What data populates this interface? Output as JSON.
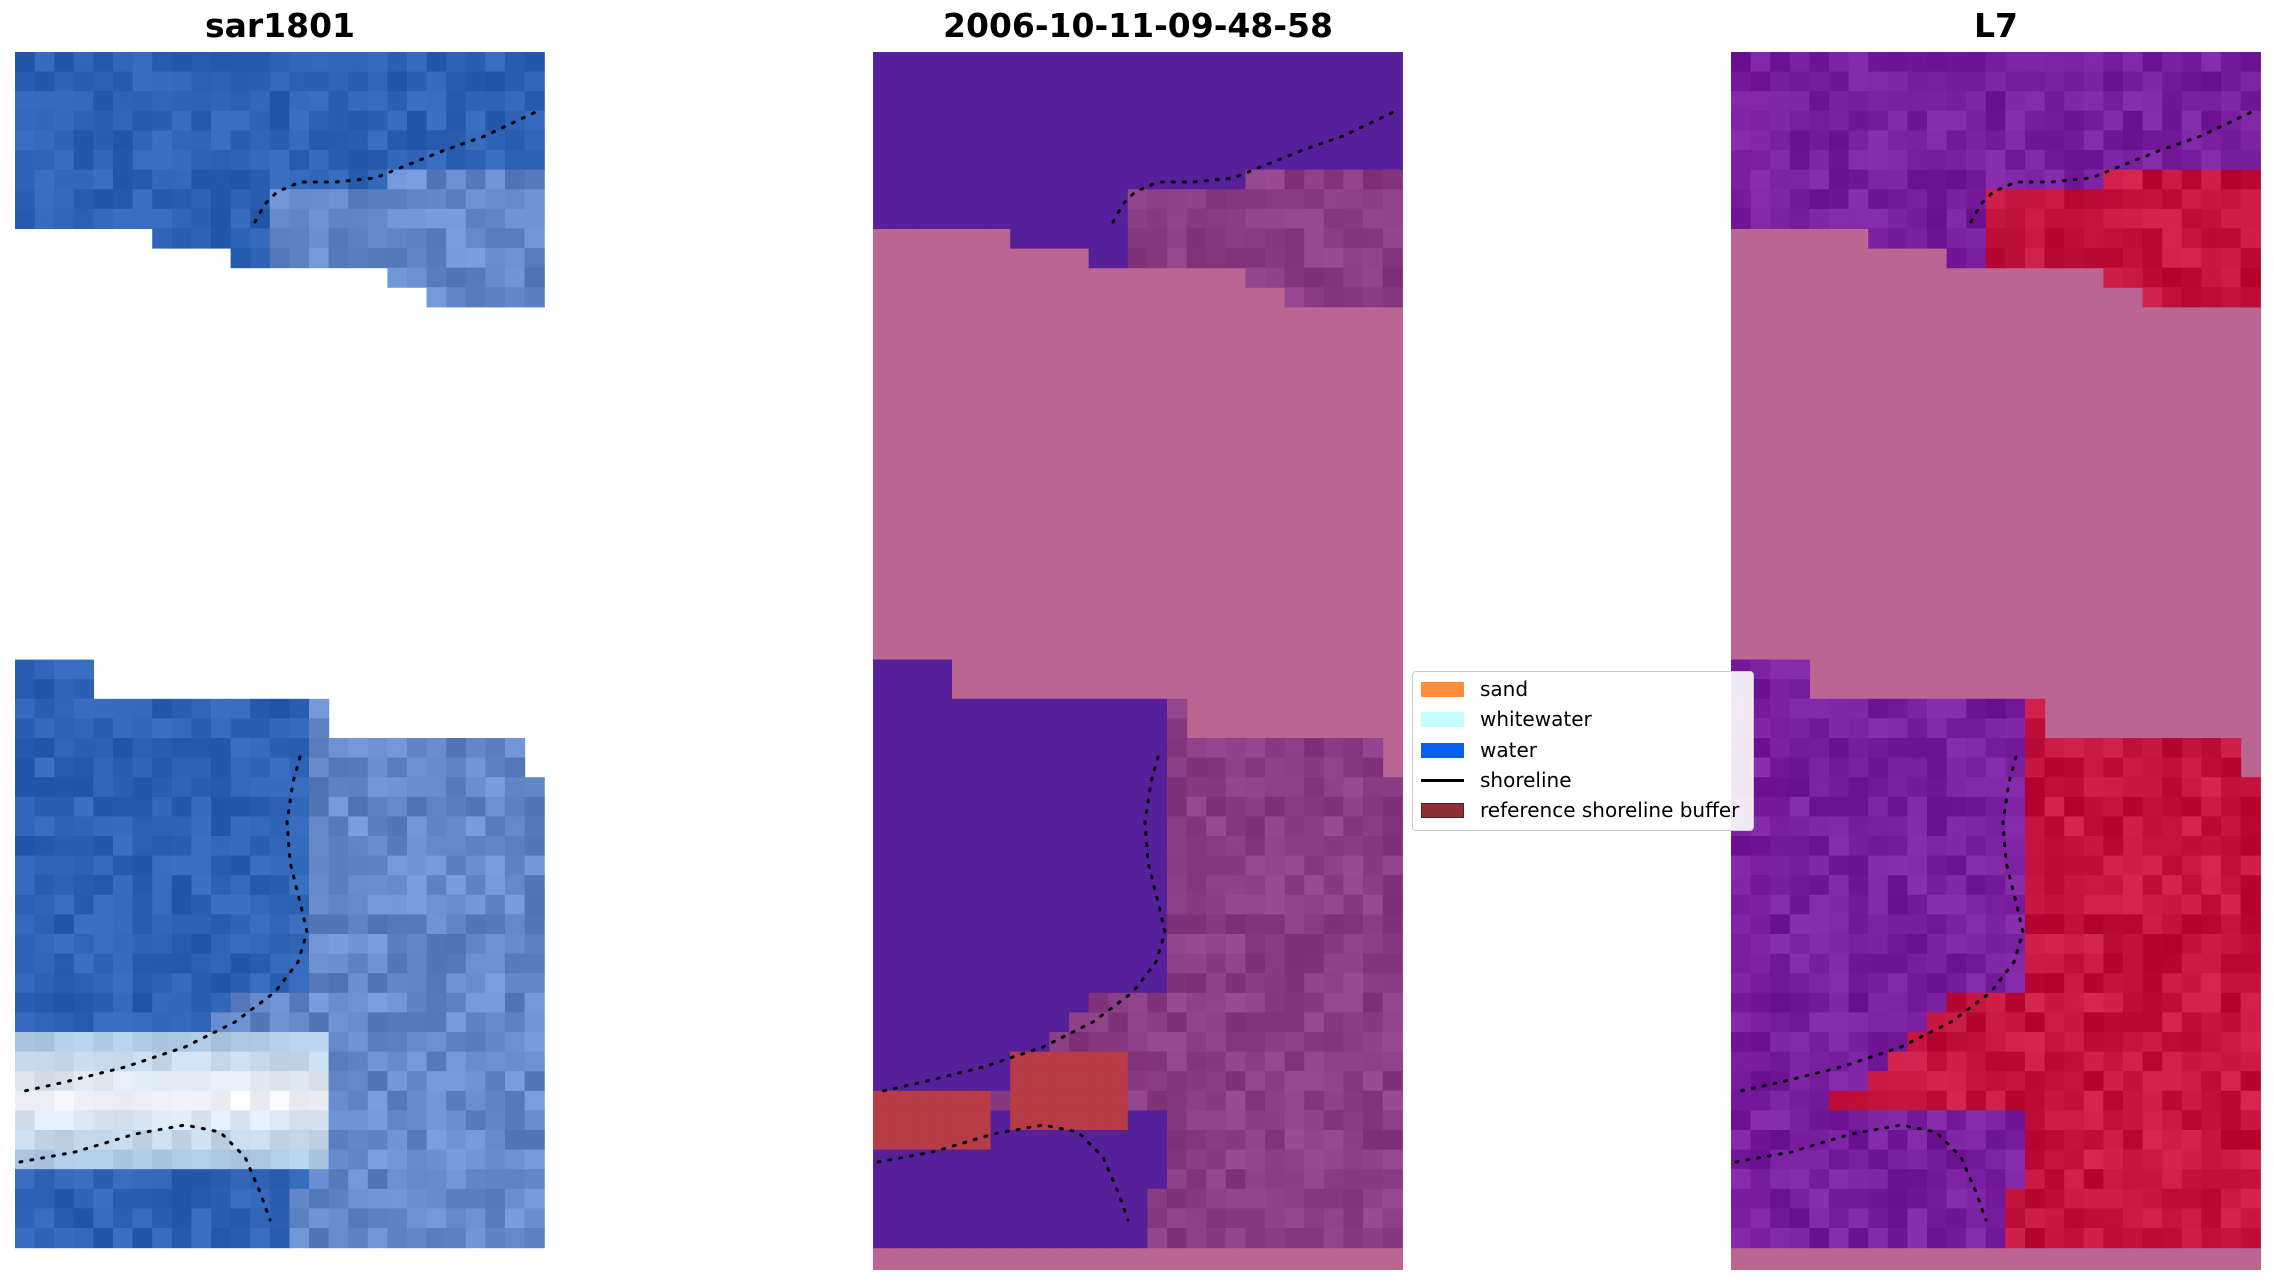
{
  "panels": [
    {
      "title": "sar1801"
    },
    {
      "title": "2006-10-11-09-48-58"
    },
    {
      "title": "L7"
    }
  ],
  "legend": [
    {
      "label": "sand",
      "kind": "patch",
      "color": "#ff8c3a"
    },
    {
      "label": "whitewater",
      "kind": "patch",
      "color": "#c6fdfd"
    },
    {
      "label": "water",
      "kind": "patch",
      "color": "#0a5ef0"
    },
    {
      "label": "shoreline",
      "kind": "line",
      "color": "#000000"
    },
    {
      "label": "reference shoreline buffer",
      "kind": "patch",
      "color": "#8b2f34"
    }
  ],
  "colors": {
    "rgb_water": "#2e62b4",
    "rgb_surf": "#f0f4f8",
    "class_water": "#55209a",
    "class_nodata": "#bb6593",
    "class_land": "#8a3d84",
    "class_buffer": "#b83b48",
    "ndwi_water": "#7a1ea0",
    "ndwi_land": "#c2143f"
  },
  "chart_data": {
    "type": "heatmap",
    "title": "",
    "layout": "three image panels sharing one legend, axes hidden",
    "panels": [
      "sar1801",
      "2006-10-11-09-48-58",
      "L7"
    ],
    "legend_placement": "center, between second and third panel",
    "legend_entries": [
      "sand",
      "whitewater",
      "water",
      "shoreline",
      "reference shoreline buffer"
    ],
    "grid": false
  }
}
